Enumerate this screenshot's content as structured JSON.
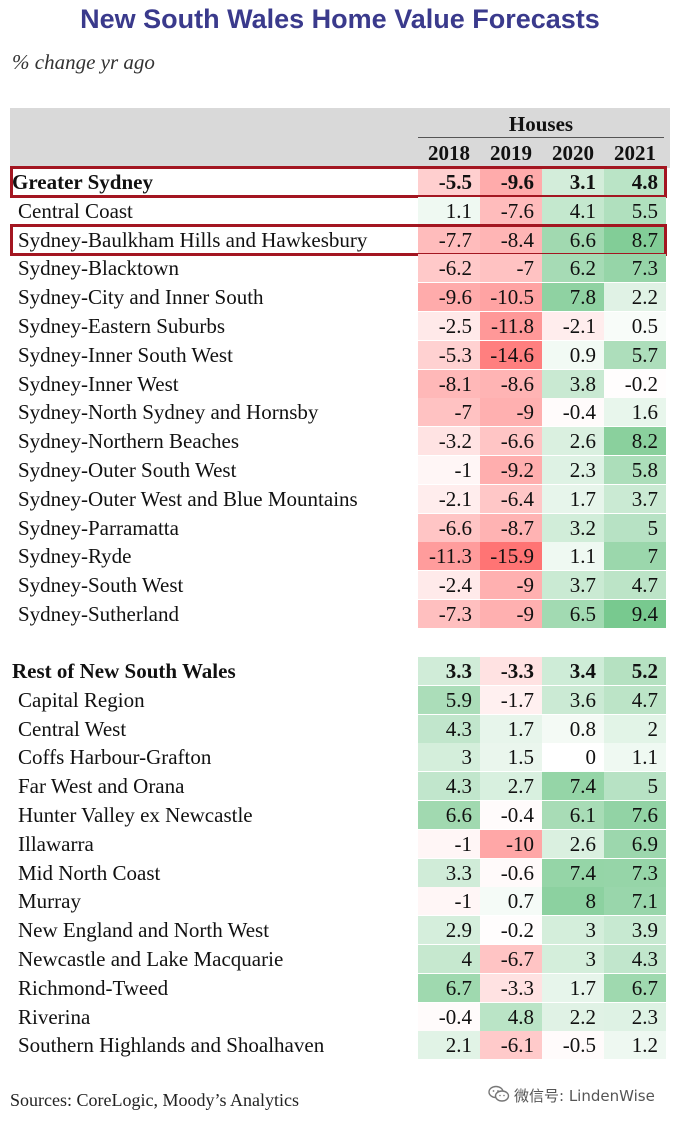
{
  "title": "New South Wales Home Value Forecasts",
  "subtitle": "% change yr ago",
  "source": "Sources: CoreLogic, Moody’s Analytics",
  "watermark": "微信号: LindenWise",
  "watermark_icon": "wechat-icon",
  "colors": {
    "title": "#3a3a8c",
    "positive": "#5fbf7a",
    "negative": "#f05a5a",
    "highlight_border": "#a31621",
    "header_band": "#d9d9d9"
  },
  "chart_data": {
    "type": "table",
    "title": "New South Wales Home Value Forecasts",
    "subtitle": "% change yr ago",
    "group_header": "Houses",
    "columns": [
      "2018",
      "2019",
      "2020",
      "2021"
    ],
    "highlighted_rows": [
      "Greater Sydney",
      "Sydney-Baulkham Hills and Hawkesbury"
    ],
    "sections": [
      {
        "name": "Greater Sydney",
        "totals": [
          -5.5,
          -9.6,
          3.1,
          4.8
        ],
        "rows": [
          {
            "name": "Central Coast",
            "values": [
              1.1,
              -7.6,
              4.1,
              5.5
            ]
          },
          {
            "name": "Sydney-Baulkham Hills and Hawkesbury",
            "values": [
              -7.7,
              -8.4,
              6.6,
              8.7
            ]
          },
          {
            "name": "Sydney-Blacktown",
            "values": [
              -6.2,
              -7,
              6.2,
              7.3
            ]
          },
          {
            "name": "Sydney-City and Inner South",
            "values": [
              -9.6,
              -10.5,
              7.8,
              2.2
            ]
          },
          {
            "name": "Sydney-Eastern Suburbs",
            "values": [
              -2.5,
              -11.8,
              -2.1,
              0.5
            ]
          },
          {
            "name": "Sydney-Inner South West",
            "values": [
              -5.3,
              -14.6,
              0.9,
              5.7
            ]
          },
          {
            "name": "Sydney-Inner West",
            "values": [
              -8.1,
              -8.6,
              3.8,
              -0.2
            ]
          },
          {
            "name": "Sydney-North Sydney and Hornsby",
            "values": [
              -7,
              -9,
              -0.4,
              1.6
            ]
          },
          {
            "name": "Sydney-Northern Beaches",
            "values": [
              -3.2,
              -6.6,
              2.6,
              8.2
            ]
          },
          {
            "name": "Sydney-Outer South West",
            "values": [
              -1,
              -9.2,
              2.3,
              5.8
            ]
          },
          {
            "name": "Sydney-Outer West and Blue Mountains",
            "values": [
              -2.1,
              -6.4,
              1.7,
              3.7
            ]
          },
          {
            "name": "Sydney-Parramatta",
            "values": [
              -6.6,
              -8.7,
              3.2,
              5
            ]
          },
          {
            "name": "Sydney-Ryde",
            "values": [
              -11.3,
              -15.9,
              1.1,
              7
            ]
          },
          {
            "name": "Sydney-South West",
            "values": [
              -2.4,
              -9,
              3.7,
              4.7
            ]
          },
          {
            "name": "Sydney-Sutherland",
            "values": [
              -7.3,
              -9,
              6.5,
              9.4
            ]
          }
        ]
      },
      {
        "name": "Rest of New South Wales",
        "totals": [
          3.3,
          -3.3,
          3.4,
          5.2
        ],
        "rows": [
          {
            "name": "Capital Region",
            "values": [
              5.9,
              -1.7,
              3.6,
              4.7
            ]
          },
          {
            "name": "Central West",
            "values": [
              4.3,
              1.7,
              0.8,
              2
            ]
          },
          {
            "name": "Coffs Harbour-Grafton",
            "values": [
              3,
              1.5,
              0,
              1.1
            ]
          },
          {
            "name": "Far West and Orana",
            "values": [
              4.3,
              2.7,
              7.4,
              5
            ]
          },
          {
            "name": "Hunter Valley ex Newcastle",
            "values": [
              6.6,
              -0.4,
              6.1,
              7.6
            ]
          },
          {
            "name": "Illawarra",
            "values": [
              -1,
              -10,
              2.6,
              6.9
            ]
          },
          {
            "name": "Mid North Coast",
            "values": [
              3.3,
              -0.6,
              7.4,
              7.3
            ]
          },
          {
            "name": "Murray",
            "values": [
              -1,
              0.7,
              8,
              7.1
            ]
          },
          {
            "name": "New England and North West",
            "values": [
              2.9,
              -0.2,
              3,
              3.9
            ]
          },
          {
            "name": "Newcastle and Lake Macquarie",
            "values": [
              4,
              -6.7,
              3,
              4.3
            ]
          },
          {
            "name": "Richmond-Tweed",
            "values": [
              6.7,
              -3.3,
              1.7,
              6.7
            ]
          },
          {
            "name": "Riverina",
            "values": [
              -0.4,
              4.8,
              2.2,
              2.3
            ]
          },
          {
            "name": "Southern Highlands and Shoalhaven",
            "values": [
              2.1,
              -6.1,
              -0.5,
              1.2
            ]
          }
        ]
      }
    ]
  }
}
